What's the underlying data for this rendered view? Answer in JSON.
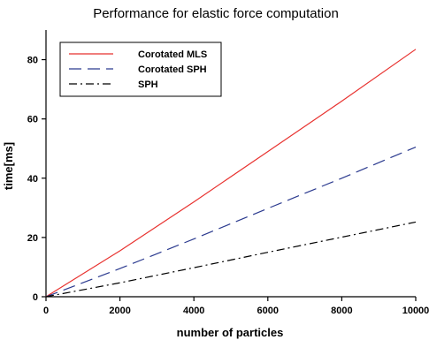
{
  "chart_data": {
    "type": "line",
    "title": "Performance for elastic force computation",
    "xlabel": "number of particles",
    "ylabel": "time[ms]",
    "xlim": [
      0,
      10000
    ],
    "ylim": [
      0,
      90
    ],
    "x_ticks": [
      0,
      2000,
      4000,
      6000,
      8000,
      10000
    ],
    "y_ticks": [
      0,
      20,
      40,
      60,
      80
    ],
    "grid": false,
    "legend_position": "top-left",
    "x": [
      0,
      2000,
      4000,
      6000,
      8000,
      10000
    ],
    "series": [
      {
        "name": "Corotated MLS",
        "values": [
          0,
          15.5,
          32.0,
          49.0,
          66.0,
          83.5
        ],
        "color": "#e8322f",
        "style": "solid"
      },
      {
        "name": "Corotated SPH",
        "values": [
          0,
          9.5,
          19.5,
          29.8,
          40.0,
          50.5
        ],
        "color": "#2b3a8f",
        "style": "dashed"
      },
      {
        "name": "SPH",
        "values": [
          0,
          4.7,
          9.8,
          15.0,
          20.1,
          25.2
        ],
        "color": "#000000",
        "style": "dashdot"
      }
    ]
  }
}
